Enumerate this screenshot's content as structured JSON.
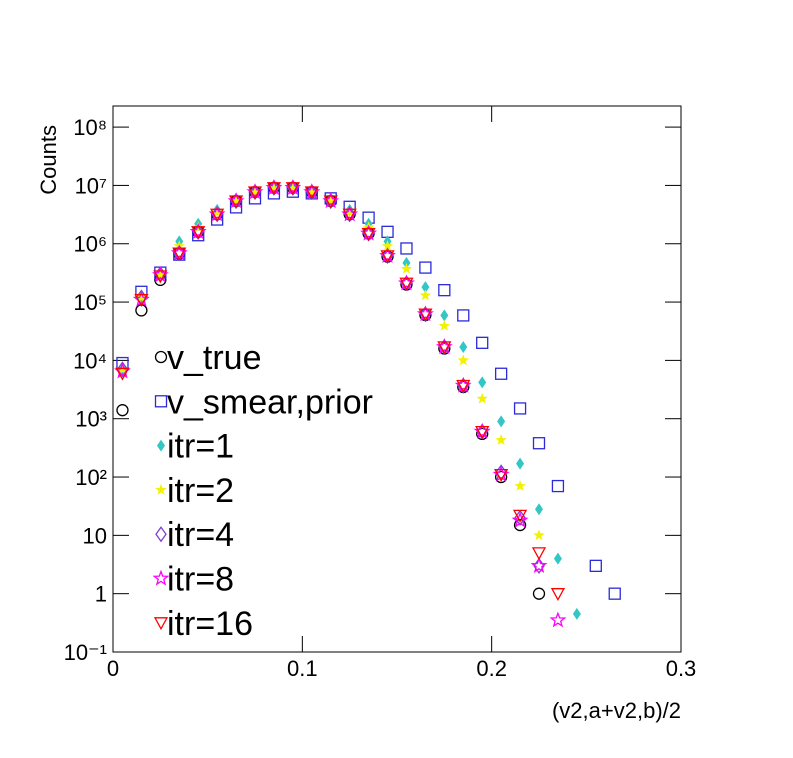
{
  "chart_data": {
    "type": "scatter",
    "y_label": "Counts",
    "x_label": "(v2,a+v2,b)/2",
    "log_y": true,
    "legend": "lower-left",
    "xlim": [
      0,
      0.3
    ],
    "xticks": [
      0,
      0.1,
      0.2,
      0.3
    ],
    "ylim": [
      0.1,
      230000000
    ],
    "yticks": [
      {
        "value": 0.1,
        "label": "10⁻¹"
      },
      1,
      10,
      {
        "value": 100,
        "label": "10²"
      },
      {
        "value": 1000,
        "label": "10³"
      },
      {
        "value": 10000,
        "label": "10⁴"
      },
      {
        "value": 100000,
        "label": "10⁵"
      },
      {
        "value": 1000000,
        "label": "10⁶"
      },
      {
        "value": 10000000,
        "label": "10⁷"
      },
      {
        "value": 100000000,
        "label": "10⁸"
      }
    ],
    "x": [
      0.005,
      0.015,
      0.025,
      0.035,
      0.045,
      0.055,
      0.065,
      0.075,
      0.085,
      0.095,
      0.105,
      0.115,
      0.125,
      0.135,
      0.145,
      0.155,
      0.165,
      0.175,
      0.185,
      0.195,
      0.205,
      0.215,
      0.225,
      0.235,
      0.245,
      0.255,
      0.265
    ],
    "series": [
      {
        "name": "v_true",
        "color": "#000000",
        "marker": "circle-open",
        "values": [
          1400,
          72000,
          240000,
          680000,
          1600000,
          3200000,
          5400000,
          7700000,
          9100000,
          9100000,
          7700000,
          5400000,
          3200000,
          1500000,
          600000,
          200000,
          60000,
          16000,
          3500,
          550,
          100,
          15,
          1,
          null,
          null,
          null,
          null
        ]
      },
      {
        "name": "v_smear,prior",
        "color": "#2b2bd9",
        "marker": "square-open",
        "values": [
          9000,
          150000,
          320000,
          650000,
          1400000,
          2600000,
          4200000,
          6000000,
          7300000,
          7800000,
          7300000,
          6000000,
          4300000,
          2800000,
          1600000,
          830000,
          390000,
          160000,
          59000,
          20000,
          5900,
          1500,
          380,
          70,
          null,
          3,
          1
        ]
      },
      {
        "name": "itr=1",
        "color": "#33c6c6",
        "marker": "diamond",
        "values": [
          7000,
          120000,
          300000,
          1100000,
          2200000,
          3800000,
          5800000,
          7600000,
          8800000,
          8800000,
          7600000,
          5800000,
          3800000,
          2200000,
          1100000,
          470000,
          180000,
          59000,
          17000,
          4200,
          900,
          170,
          28,
          4,
          0.45,
          null,
          null
        ]
      },
      {
        "name": "itr=2",
        "color": "#f2f200",
        "marker": "star",
        "values": [
          7000,
          120000,
          300000,
          910000,
          1900000,
          3500000,
          5600000,
          7500000,
          8700000,
          8700000,
          7500000,
          5600000,
          3500000,
          1900000,
          910000,
          370000,
          130000,
          39000,
          10000,
          2200,
          430,
          70,
          10,
          null,
          null,
          null,
          null
        ]
      },
      {
        "name": "itr=4",
        "color": "#7f3fcf",
        "marker": "diamond-open",
        "values": [
          7000,
          120000,
          300000,
          690000,
          1600000,
          3200000,
          5400000,
          7700000,
          9100000,
          9100000,
          7700000,
          5400000,
          3200000,
          1500000,
          620000,
          210000,
          62000,
          17000,
          3700,
          600,
          120,
          20,
          3,
          null,
          null,
          null,
          null
        ]
      },
      {
        "name": "itr=8",
        "color": "#ff00ff",
        "marker": "star-open",
        "values": [
          6500,
          110000,
          290000,
          690000,
          1600000,
          3200000,
          5400000,
          7700000,
          9100000,
          9100000,
          7700000,
          5400000,
          3200000,
          1500000,
          620000,
          210000,
          62000,
          17000,
          3700,
          600,
          110,
          18,
          3,
          0.35,
          null,
          null,
          null
        ]
      },
      {
        "name": "itr=16",
        "color": "#ff0000",
        "marker": "triangle-down-open",
        "values": [
          6000,
          110000,
          280000,
          690000,
          1600000,
          3200000,
          5400000,
          7700000,
          9100000,
          9100000,
          7700000,
          5400000,
          3200000,
          1500000,
          620000,
          210000,
          62000,
          17000,
          3700,
          600,
          110,
          22,
          5,
          1,
          null,
          null,
          null
        ]
      }
    ]
  }
}
